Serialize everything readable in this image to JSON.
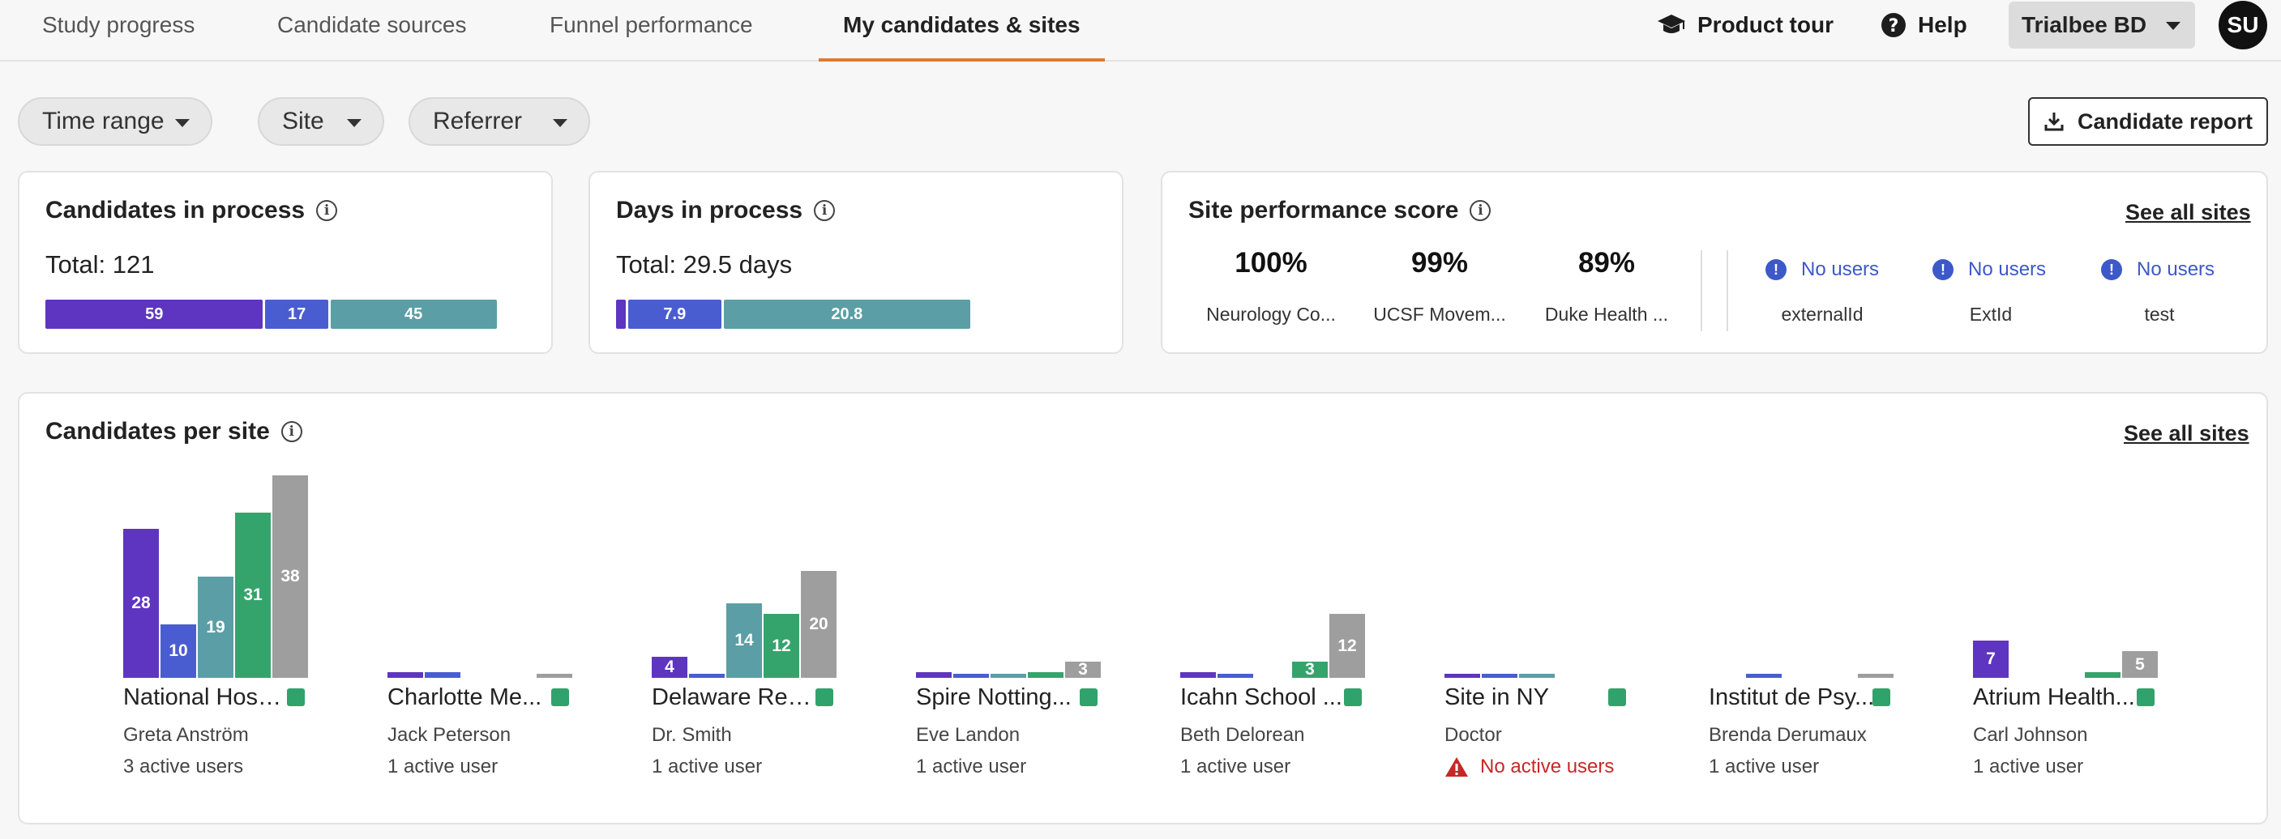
{
  "nav": {
    "tabs": [
      "Study progress",
      "Candidate sources",
      "Funnel performance",
      "My candidates & sites"
    ],
    "product_tour": "Product tour",
    "help": "Help",
    "org": "Trialbee BD",
    "avatar": "SU"
  },
  "filters": {
    "time_range": "Time range",
    "site": "Site",
    "referrer": "Referrer",
    "report_button": "Candidate report"
  },
  "colors": {
    "purple": "#5e35c0",
    "blue": "#4a5dd0",
    "teal": "#5b9ea6",
    "green": "#35a46c",
    "gray": "#9e9e9e",
    "accent": "#e07a2c"
  },
  "candidates_in_process": {
    "title": "Candidates in process",
    "total": "Total: 121",
    "segments": [
      {
        "label": "59",
        "value": 59,
        "color": "#5e35c0"
      },
      {
        "label": "17",
        "value": 17,
        "color": "#4a5dd0"
      },
      {
        "label": "45",
        "value": 45,
        "color": "#5b9ea6"
      }
    ]
  },
  "days_in_process": {
    "title": "Days in process",
    "total": "Total: 29.5 days",
    "segments": [
      {
        "label": "",
        "value": 0.8,
        "color": "#5e35c0"
      },
      {
        "label": "7.9",
        "value": 7.9,
        "color": "#4a5dd0"
      },
      {
        "label": "20.8",
        "value": 20.8,
        "color": "#5b9ea6"
      }
    ]
  },
  "site_performance": {
    "title": "Site performance score",
    "see_all": "See all sites",
    "scores": [
      {
        "value": "100%",
        "name": "Neurology Co..."
      },
      {
        "value": "99%",
        "name": "UCSF Movem..."
      },
      {
        "value": "89%",
        "name": "Duke Health ..."
      }
    ],
    "no_users": [
      {
        "label": "No users",
        "name": "externalId"
      },
      {
        "label": "No users",
        "name": "ExtId"
      },
      {
        "label": "No users",
        "name": "test"
      }
    ]
  },
  "candidates_per_site": {
    "title": "Candidates per site",
    "see_all": "See all sites",
    "sites": [
      {
        "name": "National Hosp...",
        "contact": "Greta Anström",
        "users": "3 active users",
        "warn": false
      },
      {
        "name": "Charlotte Me...",
        "contact": "Jack Peterson",
        "users": "1 active user",
        "warn": false
      },
      {
        "name": "Delaware Res...",
        "contact": "Dr. Smith",
        "users": "1 active user",
        "warn": false
      },
      {
        "name": "Spire Notting...",
        "contact": "Eve Landon",
        "users": "1 active user",
        "warn": false
      },
      {
        "name": "Icahn School ...",
        "contact": "Beth Delorean",
        "users": "1 active user",
        "warn": false
      },
      {
        "name": "Site in NY",
        "contact": "Doctor",
        "users": "No active users",
        "warn": true
      },
      {
        "name": "Institut de Psy...",
        "contact": "Brenda Derumaux",
        "users": "1 active user",
        "warn": false
      },
      {
        "name": "Atrium Health...",
        "contact": "Carl Johnson",
        "users": "1 active user",
        "warn": false
      }
    ]
  },
  "chart_data": {
    "type": "bar",
    "title": "Candidates per site",
    "categories": [
      "National Hosp...",
      "Charlotte Me...",
      "Delaware Res...",
      "Spire Notting...",
      "Icahn School ...",
      "Site in NY",
      "Institut de Psy...",
      "Atrium Health..."
    ],
    "series": [
      {
        "name": "purple",
        "color": "#5e35c0",
        "values": [
          28,
          1,
          4,
          1,
          1,
          0.5,
          0,
          7
        ]
      },
      {
        "name": "blue",
        "color": "#4a5dd0",
        "values": [
          10,
          1,
          0.5,
          0.5,
          0.5,
          0.5,
          0.5,
          0
        ]
      },
      {
        "name": "teal",
        "color": "#5b9ea6",
        "values": [
          19,
          0,
          14,
          0.5,
          0,
          0.5,
          0,
          0
        ]
      },
      {
        "name": "green",
        "color": "#35a46c",
        "values": [
          31,
          0,
          12,
          1,
          3,
          0,
          0,
          1
        ]
      },
      {
        "name": "gray",
        "color": "#9e9e9e",
        "values": [
          38,
          0.5,
          20,
          3,
          12,
          0,
          0.5,
          5
        ]
      }
    ],
    "labels": [
      [
        "28",
        "",
        "4",
        "",
        "",
        "",
        "",
        "7"
      ],
      [
        "10",
        "",
        "",
        "",
        "",
        "",
        "",
        ""
      ],
      [
        "19",
        "",
        "14",
        "",
        "",
        "",
        "",
        ""
      ],
      [
        "31",
        "",
        "12",
        "",
        "3",
        "",
        "",
        ""
      ],
      [
        "38",
        "",
        "20",
        "3",
        "12",
        "",
        "",
        "5"
      ]
    ],
    "ylim": [
      0,
      38
    ]
  }
}
